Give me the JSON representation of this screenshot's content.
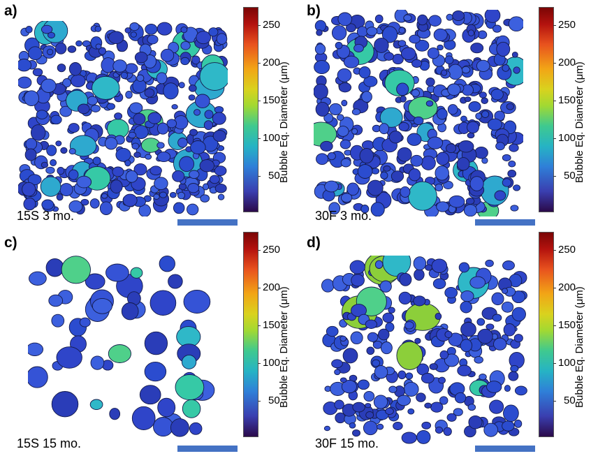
{
  "panels": [
    {
      "label": "a)",
      "caption": "15S 3 mo."
    },
    {
      "label": "b)",
      "caption": "30F 3 mo."
    },
    {
      "label": "c)",
      "caption": "15S 15 mo."
    },
    {
      "label": "d)",
      "caption": "30F 15 mo."
    }
  ],
  "colorbar": {
    "title": "Bubble Eq. Diameter (μm)",
    "ticks": [
      "250",
      "200",
      "150",
      "100",
      "50"
    ],
    "colors": [
      "#2b0a4a",
      "#3a3fb0",
      "#26b3c4",
      "#3fc98f",
      "#a2d932",
      "#f2a516",
      "#e8521e",
      "#7a0505"
    ]
  },
  "scalebar_color": "#4472c4"
}
